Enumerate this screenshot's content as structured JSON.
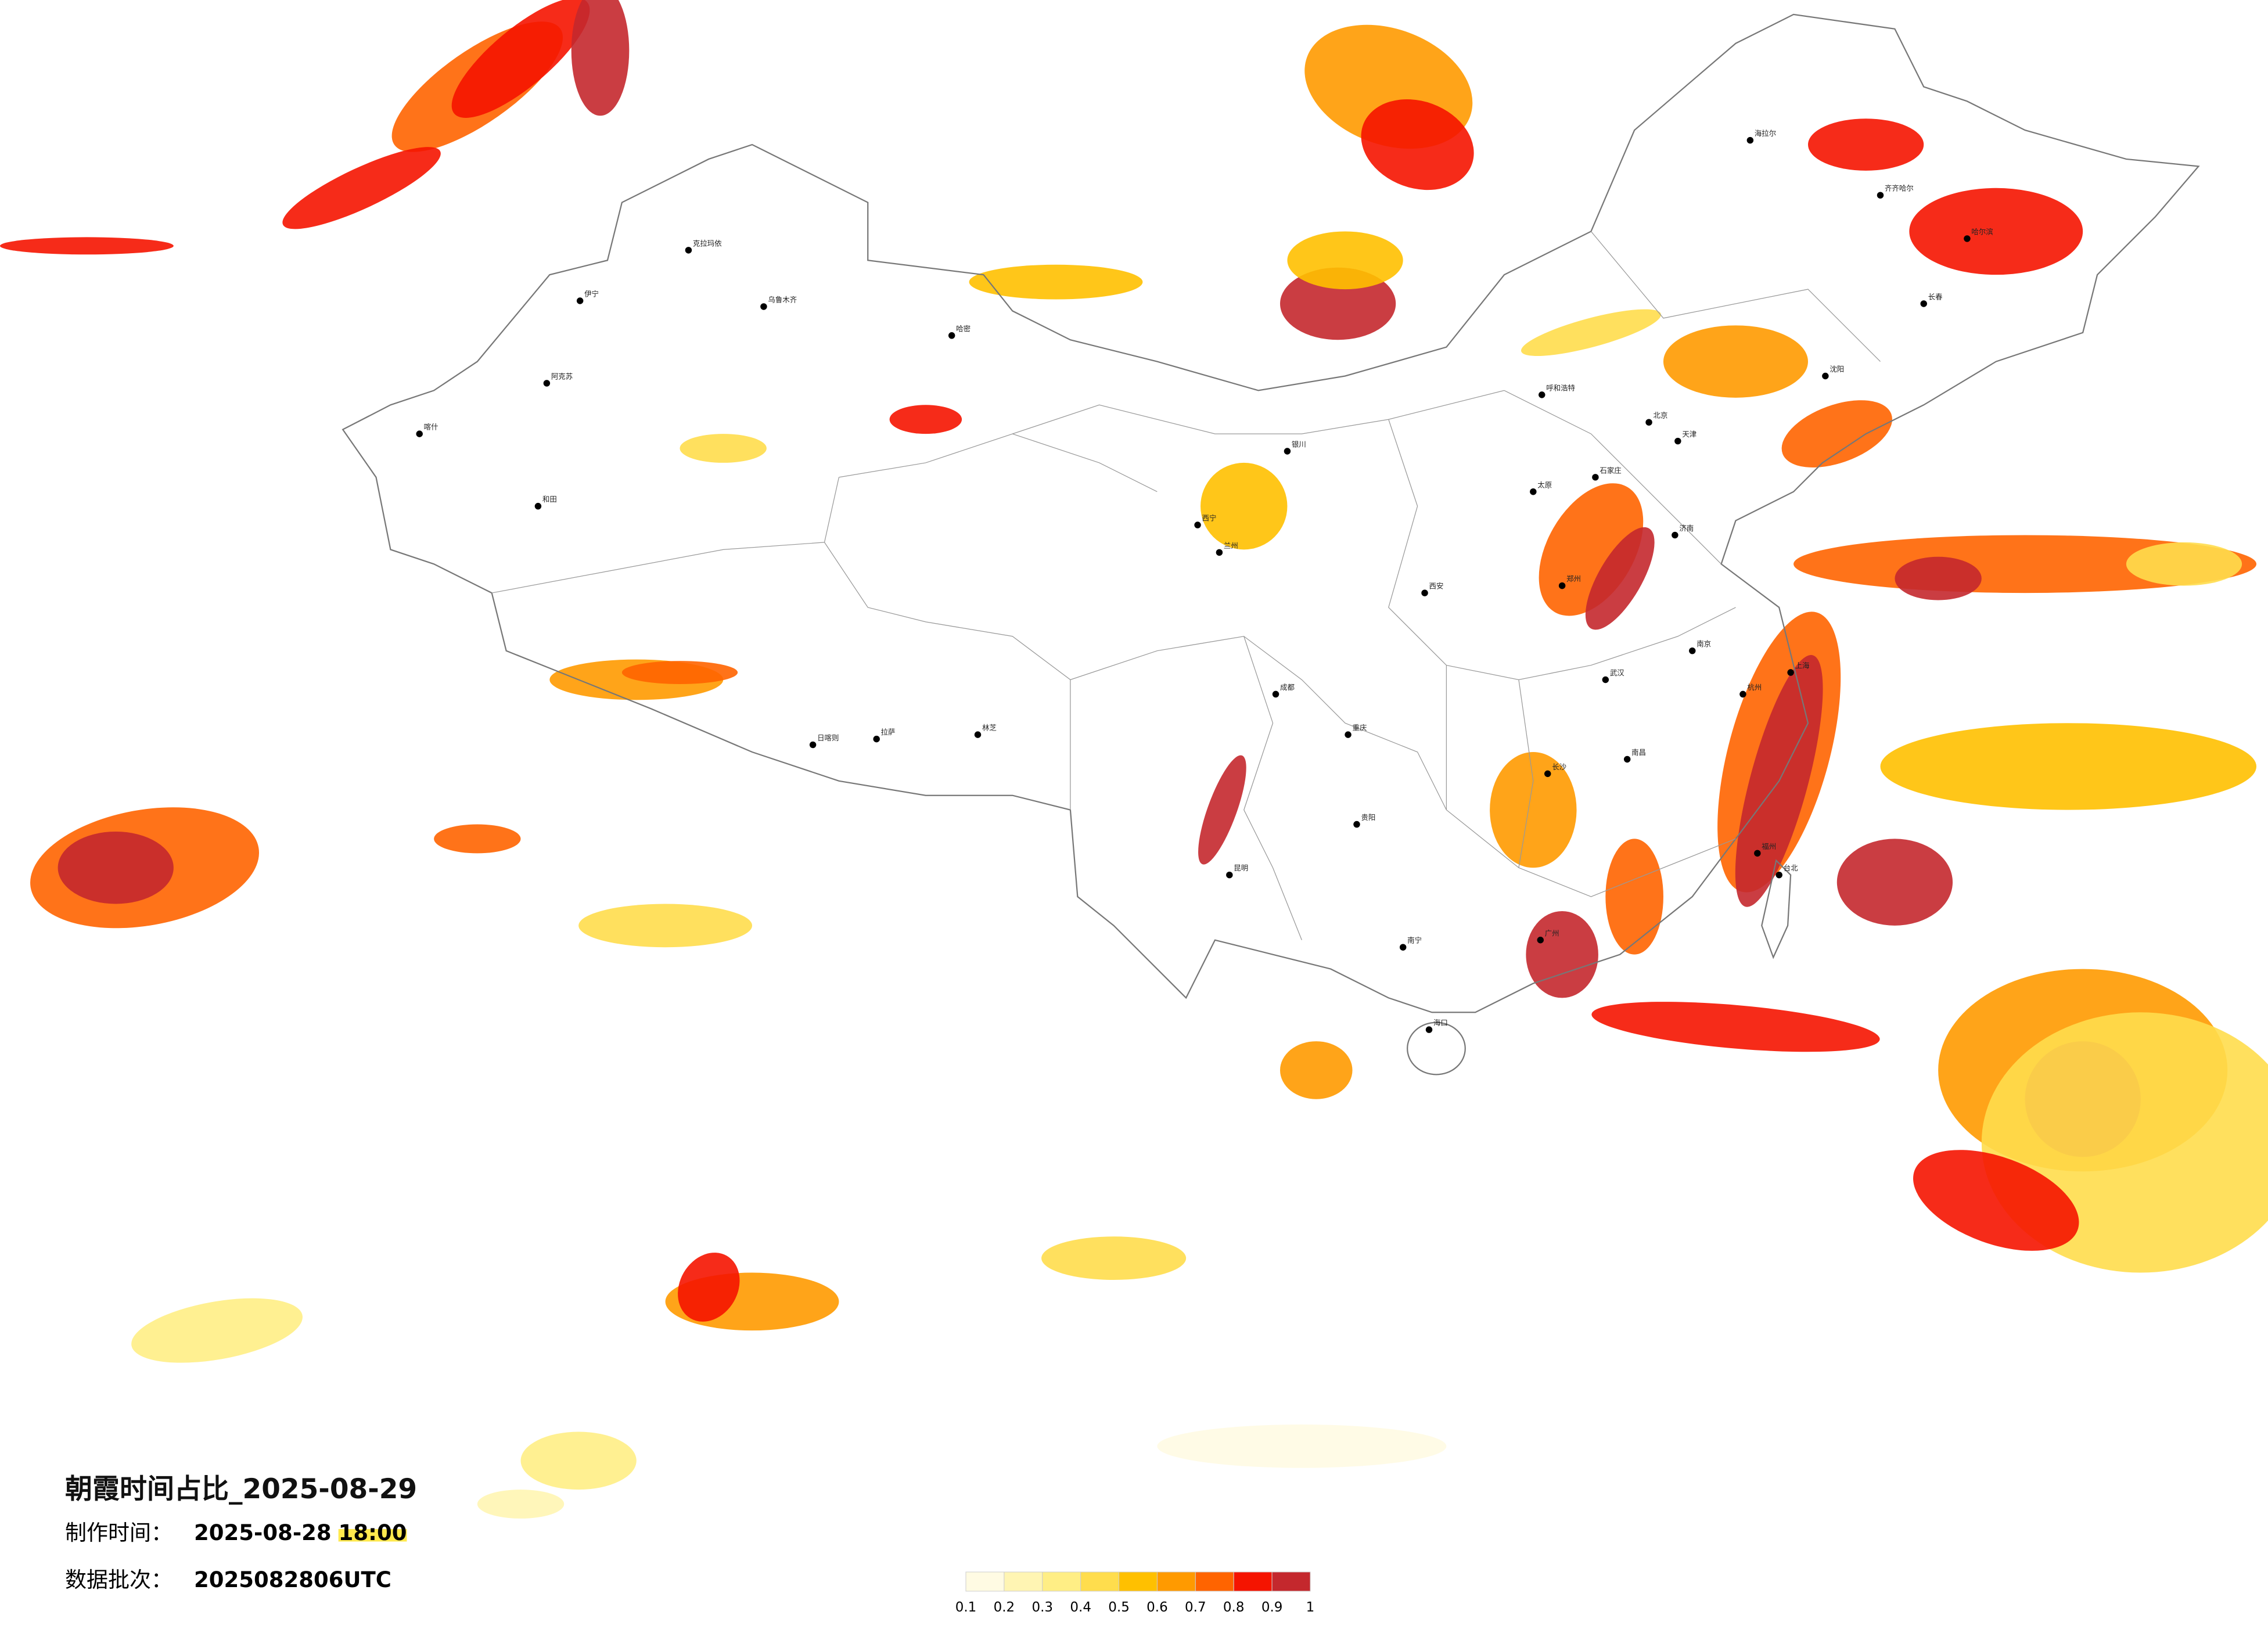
{
  "map": {
    "title": "朝霞时间占比_2025-08-29",
    "production_label": "制作时间：",
    "production_date": "2025-08-28",
    "production_time": "18:00",
    "batch_label": "数据批次：",
    "batch": "2025082806UTC",
    "legend": {
      "colors": [
        "#fffbe3",
        "#fff5b3",
        "#ffee85",
        "#ffdd4d",
        "#ffc000",
        "#ff9a00",
        "#ff6400",
        "#f51400",
        "#c4282d"
      ],
      "ticks": [
        0.1,
        0.2,
        0.3,
        0.4,
        0.5,
        0.6,
        0.7,
        0.8,
        0.9,
        1
      ]
    },
    "cities": [
      "克拉玛依",
      "伊宁",
      "乌鲁木齐",
      "阿克苏",
      "喀什",
      "和田",
      "哈密",
      "拉萨",
      "日喀则",
      "林芝",
      "西宁",
      "兰州",
      "银川",
      "呼和浩特",
      "北京",
      "天津",
      "石家庄",
      "太原",
      "西安",
      "郑州",
      "武汉",
      "成都",
      "重庆",
      "贵阳",
      "昆明",
      "南宁",
      "广州",
      "长沙",
      "南昌",
      "福州",
      "杭州",
      "上海",
      "南京",
      "济南",
      "沈阳",
      "长春",
      "哈尔滨",
      "海拉尔",
      "齐齐哈尔",
      "海口",
      "台北"
    ]
  }
}
